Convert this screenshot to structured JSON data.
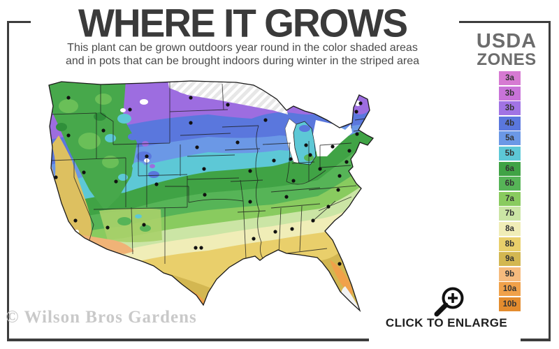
{
  "header": {
    "title": "WHERE IT GROWS",
    "subtitle_line1": "This plant can be grown outdoors year round in the color shaded areas",
    "subtitle_line2": "and in pots that can be brought indoors during winter in the striped area"
  },
  "legend": {
    "title_line1": "USDA",
    "title_line2": "ZONES",
    "zones": [
      {
        "label": "3a",
        "color": "#d67ad2"
      },
      {
        "label": "3b",
        "color": "#c873d8"
      },
      {
        "label": "3b",
        "color": "#a173e4"
      },
      {
        "label": "4b",
        "color": "#5a77dd"
      },
      {
        "label": "5a",
        "color": "#6b98e6"
      },
      {
        "label": "5b",
        "color": "#5dc8d6"
      },
      {
        "label": "6a",
        "color": "#40a345"
      },
      {
        "label": "6b",
        "color": "#56b457"
      },
      {
        "label": "7a",
        "color": "#89cb5f"
      },
      {
        "label": "7b",
        "color": "#cbe5a5"
      },
      {
        "label": "8a",
        "color": "#f0edb7"
      },
      {
        "label": "8b",
        "color": "#e9cf6b"
      },
      {
        "label": "9a",
        "color": "#d3b751"
      },
      {
        "label": "9b",
        "color": "#f6bb7e"
      },
      {
        "label": "10a",
        "color": "#f0a14a"
      },
      {
        "label": "10b",
        "color": "#e38c2e"
      }
    ]
  },
  "footer": {
    "watermark": "© Wilson Bros Gardens",
    "enlarge_label": "CLICK TO ENLARGE"
  }
}
